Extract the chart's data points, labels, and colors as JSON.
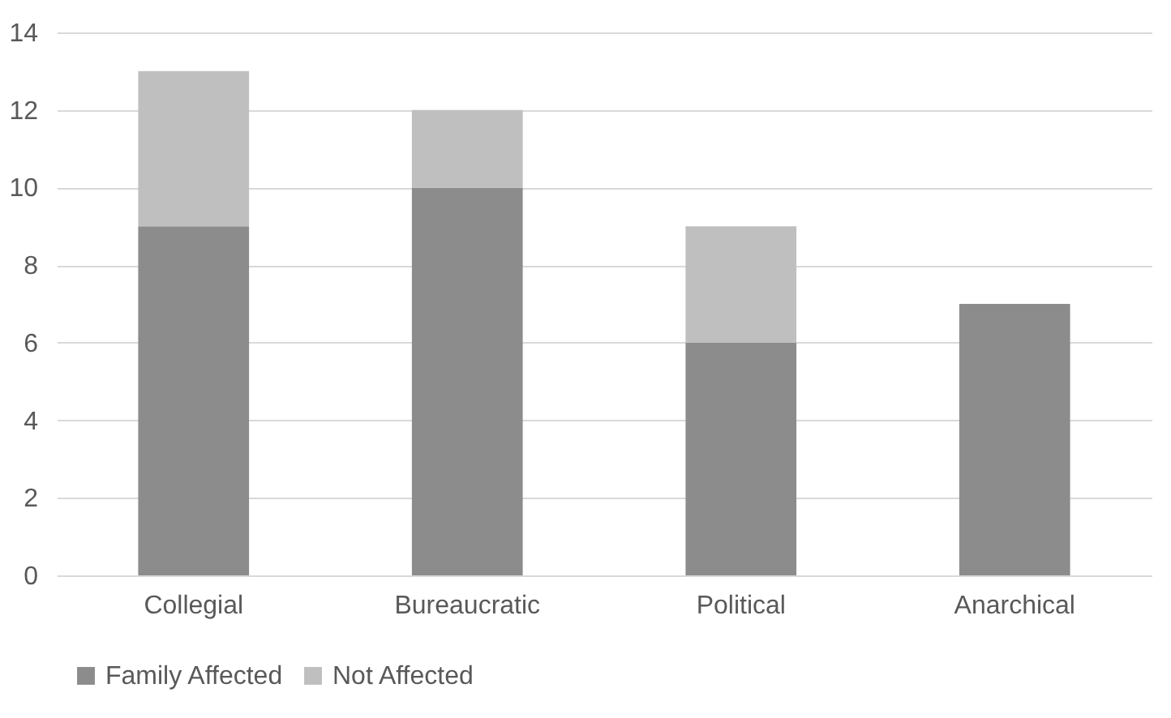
{
  "chart_data": {
    "type": "bar",
    "stacked": true,
    "categories": [
      "Collegial",
      "Bureaucratic",
      "Political",
      "Anarchical"
    ],
    "series": [
      {
        "name": "Family Affected",
        "color": "#8c8c8c",
        "values": [
          9,
          10,
          6,
          7
        ]
      },
      {
        "name": "Not Affected",
        "color": "#bfbfbf",
        "values": [
          4,
          2,
          3,
          0
        ]
      }
    ],
    "ylim": [
      0,
      14
    ],
    "yticks": [
      0,
      2,
      4,
      6,
      8,
      10,
      12,
      14
    ],
    "grid": "y",
    "legend": "bottom"
  }
}
